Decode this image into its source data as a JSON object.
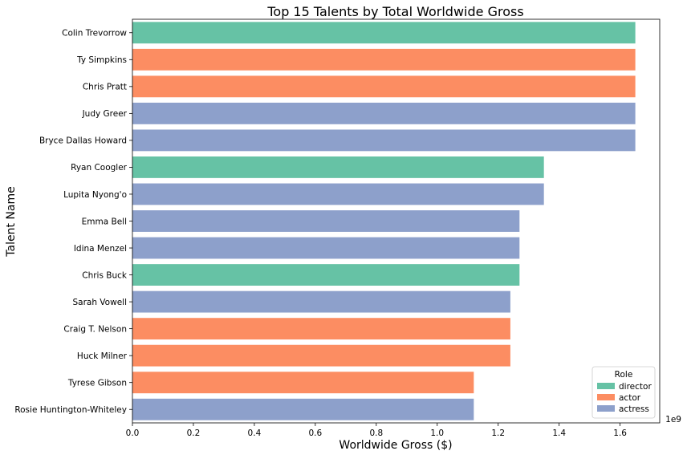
{
  "chart_data": {
    "type": "bar",
    "orientation": "horizontal",
    "title": "Top 15 Talents by Total Worldwide Gross",
    "xlabel": "Worldwide Gross ($)",
    "ylabel": "Talent Name",
    "x_scale_label": "1e9",
    "xlim": [
      0,
      1.73
    ],
    "xticks": [
      0.0,
      0.2,
      0.4,
      0.6,
      0.8,
      1.0,
      1.2,
      1.4,
      1.6
    ],
    "xtick_labels": [
      "0.0",
      "0.2",
      "0.4",
      "0.6",
      "0.8",
      "1.0",
      "1.2",
      "1.4",
      "1.6"
    ],
    "grid": false,
    "legend": {
      "title": "Role",
      "placement": "bottom-right",
      "entries": [
        {
          "label": "director",
          "color": "#66c2a5"
        },
        {
          "label": "actor",
          "color": "#fc8d62"
        },
        {
          "label": "actress",
          "color": "#8da0cb"
        }
      ]
    },
    "categories": [
      "Colin Trevorrow",
      "Ty Simpkins",
      "Chris Pratt",
      "Judy Greer",
      "Bryce Dallas Howard",
      "Ryan Coogler",
      "Lupita Nyong'o",
      "Emma Bell",
      "Idina Menzel",
      "Chris Buck",
      "Sarah Vowell",
      "Craig T. Nelson",
      "Huck Milner",
      "Tyrese Gibson",
      "Rosie Huntington-Whiteley"
    ],
    "values": [
      1.65,
      1.65,
      1.65,
      1.65,
      1.65,
      1.35,
      1.35,
      1.27,
      1.27,
      1.27,
      1.24,
      1.24,
      1.24,
      1.12,
      1.12
    ],
    "roles": [
      "director",
      "actor",
      "actor",
      "actress",
      "actress",
      "director",
      "actress",
      "actress",
      "actress",
      "director",
      "actress",
      "actor",
      "actor",
      "actor",
      "actress"
    ]
  }
}
